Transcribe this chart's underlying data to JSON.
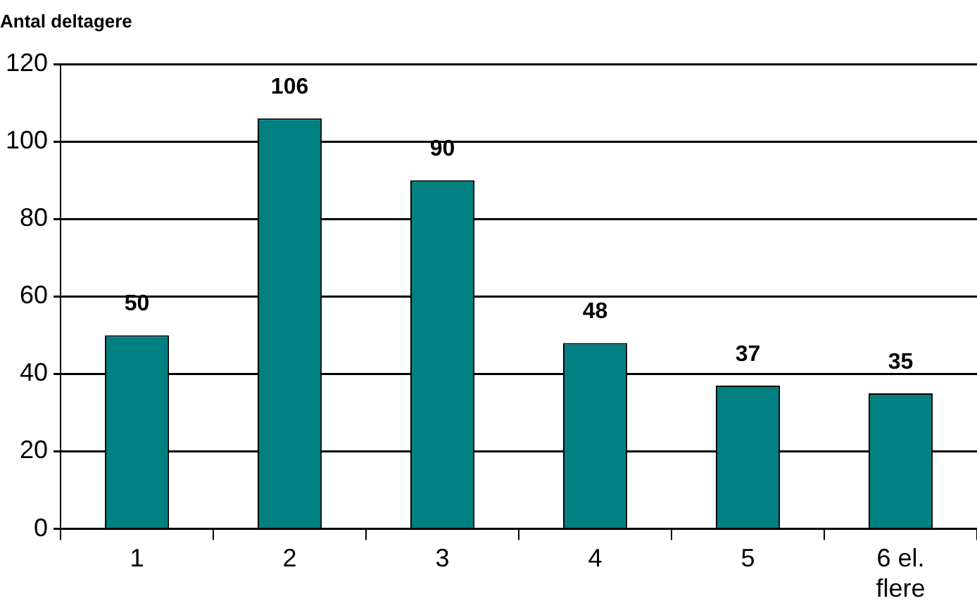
{
  "chart_data": {
    "type": "bar",
    "ylabel": "Antal deltagere",
    "categories": [
      "1",
      "2",
      "3",
      "4",
      "5",
      "6 el. flere"
    ],
    "values": [
      50,
      106,
      90,
      48,
      37,
      35
    ],
    "color": "#008080",
    "ylim": [
      0,
      120
    ],
    "yticks": [
      0,
      20,
      40,
      60,
      80,
      100,
      120
    ],
    "grid": "y",
    "data_labels": true,
    "legend": false
  }
}
